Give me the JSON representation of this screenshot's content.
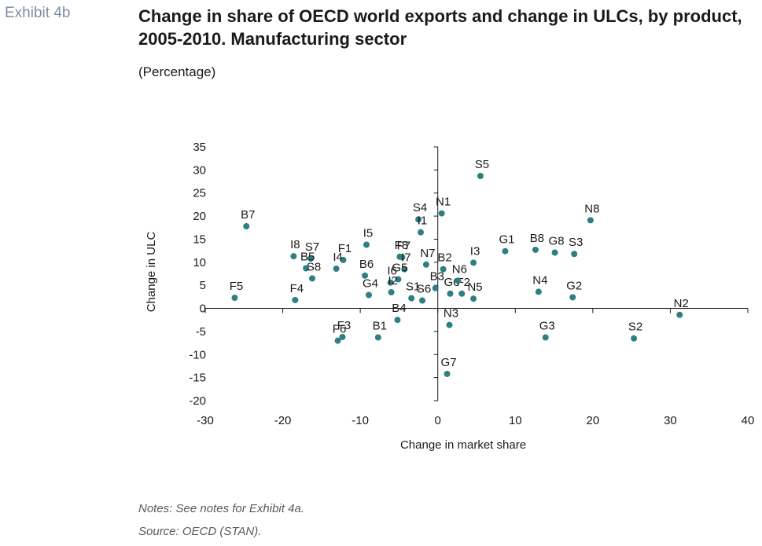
{
  "header": {
    "exhibit": "Exhibit 4b",
    "title": "Change in share of OECD world exports and change in ULCs, by product, 2005-2010. Manufacturing sector",
    "subtitle": "(Percentage)"
  },
  "footer": {
    "notes": "Notes: See notes for Exhibit 4a.",
    "source": "Source: OECD (STAN)."
  },
  "colors": {
    "marker": "#2e7f82",
    "axis": "#1a1a1a"
  },
  "chart_data": {
    "type": "scatter",
    "xlabel": "Change in market share",
    "ylabel": "Change in ULC",
    "xlim": [
      -30,
      40
    ],
    "ylim": [
      -20,
      35
    ],
    "xticks": [
      -30,
      -20,
      -10,
      0,
      10,
      20,
      30,
      40
    ],
    "yticks": [
      35,
      30,
      25,
      20,
      15,
      10,
      5,
      0,
      -5,
      -10,
      -15,
      -20
    ],
    "grid": false,
    "points": [
      {
        "label": "S5",
        "x": 5.5,
        "y": 28.7
      },
      {
        "label": "N1",
        "x": 0.5,
        "y": 20.6
      },
      {
        "label": "S4",
        "x": -2.5,
        "y": 19.3
      },
      {
        "label": "I1",
        "x": -2.2,
        "y": 16.5
      },
      {
        "label": "N8",
        "x": 19.7,
        "y": 19.1
      },
      {
        "label": "B7",
        "x": -24.7,
        "y": 17.8
      },
      {
        "label": "I5",
        "x": -9.2,
        "y": 13.8
      },
      {
        "label": "F1",
        "x": -12.2,
        "y": 10.5
      },
      {
        "label": "I8",
        "x": -18.6,
        "y": 11.3
      },
      {
        "label": "S7",
        "x": -16.4,
        "y": 10.8
      },
      {
        "label": "B5",
        "x": -17.0,
        "y": 8.7
      },
      {
        "label": "S8",
        "x": -16.2,
        "y": 6.5
      },
      {
        "label": "I4",
        "x": -13.1,
        "y": 8.6
      },
      {
        "label": "B6",
        "x": -9.4,
        "y": 7.1
      },
      {
        "label": "F8",
        "x": -4.9,
        "y": 11.2
      },
      {
        "label": "F7",
        "x": -4.6,
        "y": 11.1
      },
      {
        "label": "I7",
        "x": -4.3,
        "y": 8.5
      },
      {
        "label": "N7",
        "x": -1.5,
        "y": 9.5
      },
      {
        "label": "B2",
        "x": 0.7,
        "y": 8.5
      },
      {
        "label": "I3",
        "x": 4.6,
        "y": 9.9
      },
      {
        "label": "G1",
        "x": 8.7,
        "y": 12.4
      },
      {
        "label": "B8",
        "x": 12.6,
        "y": 12.7
      },
      {
        "label": "G8",
        "x": 15.1,
        "y": 12.1
      },
      {
        "label": "S3",
        "x": 17.6,
        "y": 11.8
      },
      {
        "label": "I6",
        "x": -6.1,
        "y": 5.6
      },
      {
        "label": "G5",
        "x": -5.1,
        "y": 6.3
      },
      {
        "label": "I2",
        "x": -6.0,
        "y": 3.5
      },
      {
        "label": "S1",
        "x": -3.4,
        "y": 2.2
      },
      {
        "label": "S6",
        "x": -2.0,
        "y": 1.7
      },
      {
        "label": "B3",
        "x": -0.3,
        "y": 4.4
      },
      {
        "label": "G6",
        "x": 1.6,
        "y": 3.2
      },
      {
        "label": "F2",
        "x": 3.1,
        "y": 3.2
      },
      {
        "label": "N6",
        "x": 2.6,
        "y": 6.0
      },
      {
        "label": "N5",
        "x": 4.6,
        "y": 2.1
      },
      {
        "label": "G4",
        "x": -8.9,
        "y": 2.9
      },
      {
        "label": "F4",
        "x": -18.4,
        "y": 1.8
      },
      {
        "label": "F5",
        "x": -26.2,
        "y": 2.3
      },
      {
        "label": "N4",
        "x": 13.0,
        "y": 3.6
      },
      {
        "label": "G2",
        "x": 17.4,
        "y": 2.4
      },
      {
        "label": "N2",
        "x": 31.2,
        "y": -1.4
      },
      {
        "label": "B4",
        "x": -5.2,
        "y": -2.5
      },
      {
        "label": "N3",
        "x": 1.5,
        "y": -3.6
      },
      {
        "label": "B1",
        "x": -7.7,
        "y": -6.3
      },
      {
        "label": "F3",
        "x": -12.3,
        "y": -6.2
      },
      {
        "label": "F6",
        "x": -12.9,
        "y": -7.0
      },
      {
        "label": "G3",
        "x": 13.9,
        "y": -6.3
      },
      {
        "label": "S2",
        "x": 25.3,
        "y": -6.5
      },
      {
        "label": "G7",
        "x": 1.2,
        "y": -14.2
      }
    ]
  }
}
